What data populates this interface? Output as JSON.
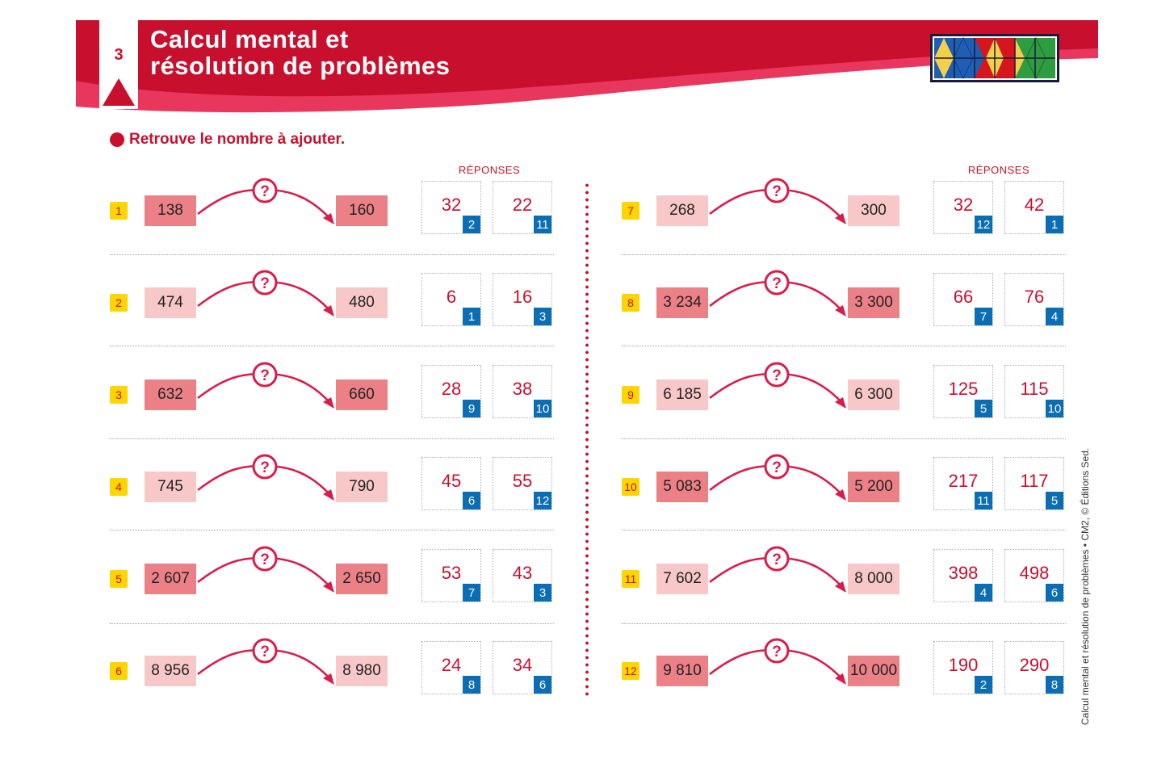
{
  "header": {
    "chapter_number": "3",
    "title_line1": "Calcul mental et",
    "title_line2": "résolution de problèmes",
    "colors": {
      "brand_red": "#c8102e",
      "pink": "#e8365d"
    }
  },
  "instruction": "Retrouve le nombre à ajouter.",
  "columns_header": "RÉPONSES",
  "question_mark": "?",
  "exercises": [
    {
      "n": "1",
      "start": "138",
      "end": "160",
      "start_shade": "dark",
      "end_shade": "dark",
      "answers": [
        {
          "value": "32",
          "tag": "2"
        },
        {
          "value": "22",
          "tag": "11"
        }
      ]
    },
    {
      "n": "2",
      "start": "474",
      "end": "480",
      "start_shade": "light",
      "end_shade": "light",
      "answers": [
        {
          "value": "6",
          "tag": "1"
        },
        {
          "value": "16",
          "tag": "3"
        }
      ]
    },
    {
      "n": "3",
      "start": "632",
      "end": "660",
      "start_shade": "dark",
      "end_shade": "dark",
      "answers": [
        {
          "value": "28",
          "tag": "9"
        },
        {
          "value": "38",
          "tag": "10"
        }
      ]
    },
    {
      "n": "4",
      "start": "745",
      "end": "790",
      "start_shade": "light",
      "end_shade": "light",
      "answers": [
        {
          "value": "45",
          "tag": "6"
        },
        {
          "value": "55",
          "tag": "12"
        }
      ]
    },
    {
      "n": "5",
      "start": "2 607",
      "end": "2 650",
      "start_shade": "dark",
      "end_shade": "dark",
      "answers": [
        {
          "value": "53",
          "tag": "7"
        },
        {
          "value": "43",
          "tag": "3"
        }
      ]
    },
    {
      "n": "6",
      "start": "8 956",
      "end": "8 980",
      "start_shade": "light",
      "end_shade": "light",
      "answers": [
        {
          "value": "24",
          "tag": "8"
        },
        {
          "value": "34",
          "tag": "6"
        }
      ]
    },
    {
      "n": "7",
      "start": "268",
      "end": "300",
      "start_shade": "light",
      "end_shade": "light",
      "answers": [
        {
          "value": "32",
          "tag": "12"
        },
        {
          "value": "42",
          "tag": "1"
        }
      ]
    },
    {
      "n": "8",
      "start": "3 234",
      "end": "3 300",
      "start_shade": "dark",
      "end_shade": "dark",
      "answers": [
        {
          "value": "66",
          "tag": "7"
        },
        {
          "value": "76",
          "tag": "4"
        }
      ]
    },
    {
      "n": "9",
      "start": "6 185",
      "end": "6 300",
      "start_shade": "light",
      "end_shade": "light",
      "answers": [
        {
          "value": "125",
          "tag": "5"
        },
        {
          "value": "115",
          "tag": "10"
        }
      ]
    },
    {
      "n": "10",
      "start": "5 083",
      "end": "5 200",
      "start_shade": "dark",
      "end_shade": "dark",
      "answers": [
        {
          "value": "217",
          "tag": "11"
        },
        {
          "value": "117",
          "tag": "5"
        }
      ]
    },
    {
      "n": "11",
      "start": "7 602",
      "end": "8 000",
      "start_shade": "light",
      "end_shade": "light",
      "answers": [
        {
          "value": "398",
          "tag": "4"
        },
        {
          "value": "498",
          "tag": "6"
        }
      ]
    },
    {
      "n": "12",
      "start": "9 810",
      "end": "10 000",
      "start_shade": "dark",
      "end_shade": "dark",
      "answers": [
        {
          "value": "190",
          "tag": "2"
        },
        {
          "value": "290",
          "tag": "8"
        }
      ]
    }
  ],
  "side_credit": "Calcul mental et résolution de problèmes • CM2, © Éditions Sed."
}
